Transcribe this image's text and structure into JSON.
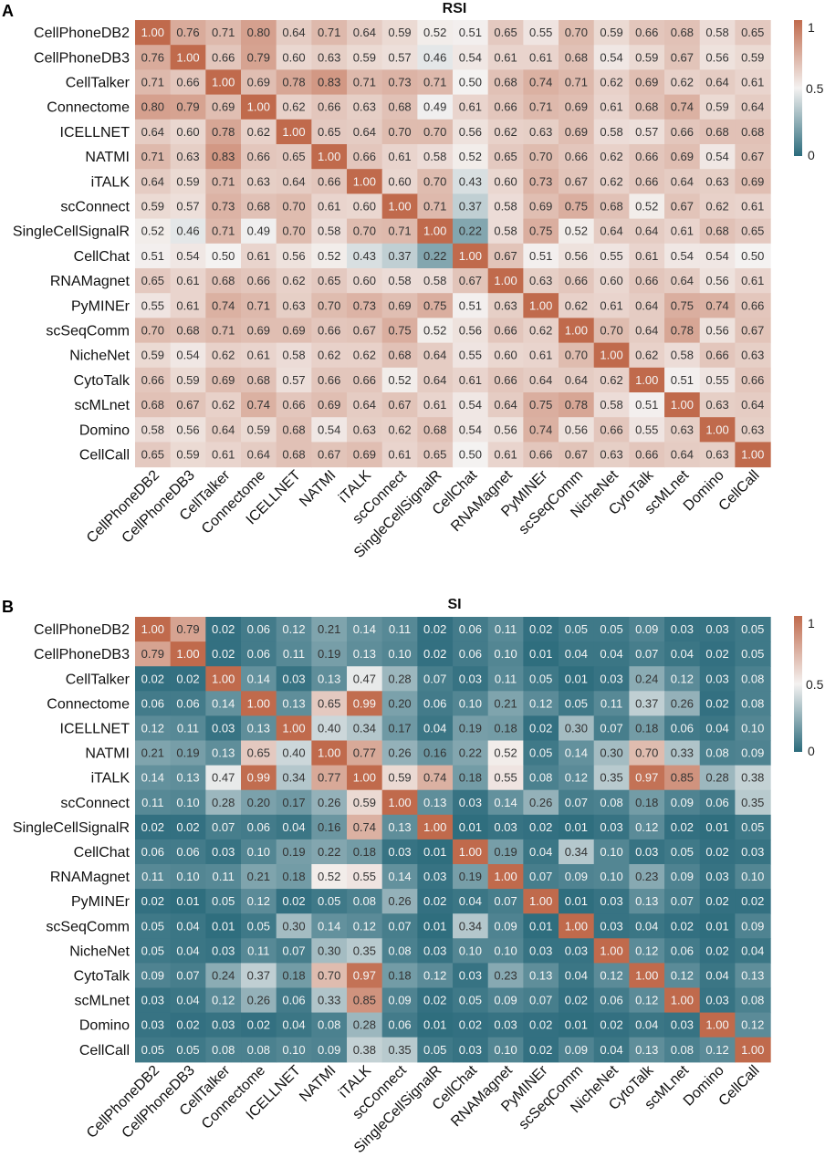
{
  "colors": {
    "low": "#2b6b7c",
    "mid": "#f4f2f1",
    "high": "#c06a4c"
  },
  "chart_data": [
    {
      "type": "heatmap",
      "panel_letter": "A",
      "title": "RSI",
      "rows": [
        "CellPhoneDB2",
        "CellPhoneDB3",
        "CellTalker",
        "Connectome",
        "ICELLNET",
        "NATMI",
        "iTALK",
        "scConnect",
        "SingleCellSignalR",
        "CellChat",
        "RNAMagnet",
        "PyMINEr",
        "scSeqComm",
        "NicheNet",
        "CytoTalk",
        "scMLnet",
        "Domino",
        "CellCall"
      ],
      "columns": [
        "CellPhoneDB2",
        "CellPhoneDB3",
        "CellTalker",
        "Connectome",
        "ICELLNET",
        "NATMI",
        "iTALK",
        "scConnect",
        "SingleCellSignalR",
        "CellChat",
        "RNAMagnet",
        "PyMINEr",
        "scSeqComm",
        "NicheNet",
        "CytoTalk",
        "scMLnet",
        "Domino",
        "CellCall"
      ],
      "values": [
        [
          "1.00",
          "0.76",
          "0.71",
          "0.80",
          "0.64",
          "0.71",
          "0.64",
          "0.59",
          "0.52",
          "0.51",
          "0.65",
          "0.55",
          "0.70",
          "0.59",
          "0.66",
          "0.68",
          "0.58",
          "0.65"
        ],
        [
          "0.76",
          "1.00",
          "0.66",
          "0.79",
          "0.60",
          "0.63",
          "0.59",
          "0.57",
          "0.46",
          "0.54",
          "0.61",
          "0.61",
          "0.68",
          "0.54",
          "0.59",
          "0.67",
          "0.56",
          "0.59"
        ],
        [
          "0.71",
          "0.66",
          "1.00",
          "0.69",
          "0.78",
          "0.83",
          "0.71",
          "0.73",
          "0.71",
          "0.50",
          "0.68",
          "0.74",
          "0.71",
          "0.62",
          "0.69",
          "0.62",
          "0.64",
          "0.61"
        ],
        [
          "0.80",
          "0.79",
          "0.69",
          "1.00",
          "0.62",
          "0.66",
          "0.63",
          "0.68",
          "0.49",
          "0.61",
          "0.66",
          "0.71",
          "0.69",
          "0.61",
          "0.68",
          "0.74",
          "0.59",
          "0.64"
        ],
        [
          "0.64",
          "0.60",
          "0.78",
          "0.62",
          "1.00",
          "0.65",
          "0.64",
          "0.70",
          "0.70",
          "0.56",
          "0.62",
          "0.63",
          "0.69",
          "0.58",
          "0.57",
          "0.66",
          "0.68",
          "0.68"
        ],
        [
          "0.71",
          "0.63",
          "0.83",
          "0.66",
          "0.65",
          "1.00",
          "0.66",
          "0.61",
          "0.58",
          "0.52",
          "0.65",
          "0.70",
          "0.66",
          "0.62",
          "0.66",
          "0.69",
          "0.54",
          "0.67"
        ],
        [
          "0.64",
          "0.59",
          "0.71",
          "0.63",
          "0.64",
          "0.66",
          "1.00",
          "0.60",
          "0.70",
          "0.43",
          "0.60",
          "0.73",
          "0.67",
          "0.62",
          "0.66",
          "0.64",
          "0.63",
          "0.69"
        ],
        [
          "0.59",
          "0.57",
          "0.73",
          "0.68",
          "0.70",
          "0.61",
          "0.60",
          "1.00",
          "0.71",
          "0.37",
          "0.58",
          "0.69",
          "0.75",
          "0.68",
          "0.52",
          "0.67",
          "0.62",
          "0.61"
        ],
        [
          "0.52",
          "0.46",
          "0.71",
          "0.49",
          "0.70",
          "0.58",
          "0.70",
          "0.71",
          "1.00",
          "0.22",
          "0.58",
          "0.75",
          "0.52",
          "0.64",
          "0.64",
          "0.61",
          "0.68",
          "0.65"
        ],
        [
          "0.51",
          "0.54",
          "0.50",
          "0.61",
          "0.56",
          "0.52",
          "0.43",
          "0.37",
          "0.22",
          "1.00",
          "0.67",
          "0.51",
          "0.56",
          "0.55",
          "0.61",
          "0.54",
          "0.54",
          "0.50"
        ],
        [
          "0.65",
          "0.61",
          "0.68",
          "0.66",
          "0.62",
          "0.65",
          "0.60",
          "0.58",
          "0.58",
          "0.67",
          "1.00",
          "0.63",
          "0.66",
          "0.60",
          "0.66",
          "0.64",
          "0.56",
          "0.61"
        ],
        [
          "0.55",
          "0.61",
          "0.74",
          "0.71",
          "0.63",
          "0.70",
          "0.73",
          "0.69",
          "0.75",
          "0.51",
          "0.63",
          "1.00",
          "0.62",
          "0.61",
          "0.64",
          "0.75",
          "0.74",
          "0.66"
        ],
        [
          "0.70",
          "0.68",
          "0.71",
          "0.69",
          "0.69",
          "0.66",
          "0.67",
          "0.75",
          "0.52",
          "0.56",
          "0.66",
          "0.62",
          "1.00",
          "0.70",
          "0.64",
          "0.78",
          "0.56",
          "0.67"
        ],
        [
          "0.59",
          "0.54",
          "0.62",
          "0.61",
          "0.58",
          "0.62",
          "0.62",
          "0.68",
          "0.64",
          "0.55",
          "0.60",
          "0.61",
          "0.70",
          "1.00",
          "0.62",
          "0.58",
          "0.66",
          "0.63"
        ],
        [
          "0.66",
          "0.59",
          "0.69",
          "0.68",
          "0.57",
          "0.66",
          "0.66",
          "0.52",
          "0.64",
          "0.61",
          "0.66",
          "0.64",
          "0.64",
          "0.62",
          "1.00",
          "0.51",
          "0.55",
          "0.66"
        ],
        [
          "0.68",
          "0.67",
          "0.62",
          "0.74",
          "0.66",
          "0.69",
          "0.64",
          "0.67",
          "0.61",
          "0.54",
          "0.64",
          "0.75",
          "0.78",
          "0.58",
          "0.51",
          "1.00",
          "0.63",
          "0.64"
        ],
        [
          "0.58",
          "0.56",
          "0.64",
          "0.59",
          "0.68",
          "0.54",
          "0.63",
          "0.62",
          "0.68",
          "0.54",
          "0.56",
          "0.74",
          "0.56",
          "0.66",
          "0.55",
          "0.63",
          "1.00",
          "0.63"
        ],
        [
          "0.65",
          "0.59",
          "0.61",
          "0.64",
          "0.68",
          "0.67",
          "0.69",
          "0.61",
          "0.65",
          "0.50",
          "0.61",
          "0.66",
          "0.67",
          "0.63",
          "0.66",
          "0.64",
          "0.63",
          "1.00"
        ]
      ],
      "colorbar": {
        "min": 0,
        "max": 1,
        "ticks": [
          "1",
          "0.5",
          "0"
        ]
      }
    },
    {
      "type": "heatmap",
      "panel_letter": "B",
      "title": "SI",
      "rows": [
        "CellPhoneDB2",
        "CellPhoneDB3",
        "CellTalker",
        "Connectome",
        "ICELLNET",
        "NATMI",
        "iTALK",
        "scConnect",
        "SingleCellSignalR",
        "CellChat",
        "RNAMagnet",
        "PyMINEr",
        "scSeqComm",
        "NicheNet",
        "CytoTalk",
        "scMLnet",
        "Domino",
        "CellCall"
      ],
      "columns": [
        "CellPhoneDB2",
        "CellPhoneDB3",
        "CellTalker",
        "Connectome",
        "ICELLNET",
        "NATMI",
        "iTALK",
        "scConnect",
        "SingleCellSignalR",
        "CellChat",
        "RNAMagnet",
        "PyMINEr",
        "scSeqComm",
        "NicheNet",
        "CytoTalk",
        "scMLnet",
        "Domino",
        "CellCall"
      ],
      "values": [
        [
          "1.00",
          "0.79",
          "0.02",
          "0.06",
          "0.12",
          "0.21",
          "0.14",
          "0.11",
          "0.02",
          "0.06",
          "0.11",
          "0.02",
          "0.05",
          "0.05",
          "0.09",
          "0.03",
          "0.03",
          "0.05"
        ],
        [
          "0.79",
          "1.00",
          "0.02",
          "0.06",
          "0.11",
          "0.19",
          "0.13",
          "0.10",
          "0.02",
          "0.06",
          "0.10",
          "0.01",
          "0.04",
          "0.04",
          "0.07",
          "0.04",
          "0.02",
          "0.05"
        ],
        [
          "0.02",
          "0.02",
          "1.00",
          "0.14",
          "0.03",
          "0.13",
          "0.47",
          "0.28",
          "0.07",
          "0.03",
          "0.11",
          "0.05",
          "0.01",
          "0.03",
          "0.24",
          "0.12",
          "0.03",
          "0.08"
        ],
        [
          "0.06",
          "0.06",
          "0.14",
          "1.00",
          "0.13",
          "0.65",
          "0.99",
          "0.20",
          "0.06",
          "0.10",
          "0.21",
          "0.12",
          "0.05",
          "0.11",
          "0.37",
          "0.26",
          "0.02",
          "0.08"
        ],
        [
          "0.12",
          "0.11",
          "0.03",
          "0.13",
          "1.00",
          "0.40",
          "0.34",
          "0.17",
          "0.04",
          "0.19",
          "0.18",
          "0.02",
          "0.30",
          "0.07",
          "0.18",
          "0.06",
          "0.04",
          "0.10"
        ],
        [
          "0.21",
          "0.19",
          "0.13",
          "0.65",
          "0.40",
          "1.00",
          "0.77",
          "0.26",
          "0.16",
          "0.22",
          "0.52",
          "0.05",
          "0.14",
          "0.30",
          "0.70",
          "0.33",
          "0.08",
          "0.09"
        ],
        [
          "0.14",
          "0.13",
          "0.47",
          "0.99",
          "0.34",
          "0.77",
          "1.00",
          "0.59",
          "0.74",
          "0.18",
          "0.55",
          "0.08",
          "0.12",
          "0.35",
          "0.97",
          "0.85",
          "0.28",
          "0.38"
        ],
        [
          "0.11",
          "0.10",
          "0.28",
          "0.20",
          "0.17",
          "0.26",
          "0.59",
          "1.00",
          "0.13",
          "0.03",
          "0.14",
          "0.26",
          "0.07",
          "0.08",
          "0.18",
          "0.09",
          "0.06",
          "0.35"
        ],
        [
          "0.02",
          "0.02",
          "0.07",
          "0.06",
          "0.04",
          "0.16",
          "0.74",
          "0.13",
          "1.00",
          "0.01",
          "0.03",
          "0.02",
          "0.01",
          "0.03",
          "0.12",
          "0.02",
          "0.01",
          "0.05"
        ],
        [
          "0.06",
          "0.06",
          "0.03",
          "0.10",
          "0.19",
          "0.22",
          "0.18",
          "0.03",
          "0.01",
          "1.00",
          "0.19",
          "0.04",
          "0.34",
          "0.10",
          "0.03",
          "0.05",
          "0.02",
          "0.03"
        ],
        [
          "0.11",
          "0.10",
          "0.11",
          "0.21",
          "0.18",
          "0.52",
          "0.55",
          "0.14",
          "0.03",
          "0.19",
          "1.00",
          "0.07",
          "0.09",
          "0.10",
          "0.23",
          "0.09",
          "0.03",
          "0.10"
        ],
        [
          "0.02",
          "0.01",
          "0.05",
          "0.12",
          "0.02",
          "0.05",
          "0.08",
          "0.26",
          "0.02",
          "0.04",
          "0.07",
          "1.00",
          "0.01",
          "0.03",
          "0.13",
          "0.07",
          "0.02",
          "0.02"
        ],
        [
          "0.05",
          "0.04",
          "0.01",
          "0.05",
          "0.30",
          "0.14",
          "0.12",
          "0.07",
          "0.01",
          "0.34",
          "0.09",
          "0.01",
          "1.00",
          "0.03",
          "0.04",
          "0.02",
          "0.01",
          "0.09"
        ],
        [
          "0.05",
          "0.04",
          "0.03",
          "0.11",
          "0.07",
          "0.30",
          "0.35",
          "0.08",
          "0.03",
          "0.10",
          "0.10",
          "0.03",
          "0.03",
          "1.00",
          "0.12",
          "0.06",
          "0.02",
          "0.04"
        ],
        [
          "0.09",
          "0.07",
          "0.24",
          "0.37",
          "0.18",
          "0.70",
          "0.97",
          "0.18",
          "0.12",
          "0.03",
          "0.23",
          "0.13",
          "0.04",
          "0.12",
          "1.00",
          "0.12",
          "0.04",
          "0.13"
        ],
        [
          "0.03",
          "0.04",
          "0.12",
          "0.26",
          "0.06",
          "0.33",
          "0.85",
          "0.09",
          "0.02",
          "0.05",
          "0.09",
          "0.07",
          "0.02",
          "0.06",
          "0.12",
          "1.00",
          "0.03",
          "0.08"
        ],
        [
          "0.03",
          "0.02",
          "0.03",
          "0.02",
          "0.04",
          "0.08",
          "0.28",
          "0.06",
          "0.01",
          "0.02",
          "0.03",
          "0.02",
          "0.01",
          "0.02",
          "0.04",
          "0.03",
          "1.00",
          "0.12"
        ],
        [
          "0.05",
          "0.05",
          "0.08",
          "0.08",
          "0.10",
          "0.09",
          "0.38",
          "0.35",
          "0.05",
          "0.03",
          "0.10",
          "0.02",
          "0.09",
          "0.04",
          "0.13",
          "0.08",
          "0.12",
          "1.00"
        ]
      ],
      "colorbar": {
        "min": 0,
        "max": 1,
        "ticks": [
          "1",
          "0.5",
          "0"
        ]
      }
    }
  ]
}
